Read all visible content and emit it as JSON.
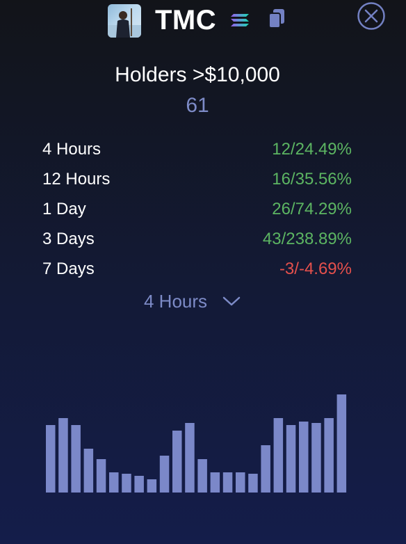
{
  "header": {
    "token_name": "TMC",
    "avatar_icon": "user-photo-avatar",
    "chain_icon": "solana-icon",
    "copy_icon": "copy-icon",
    "close_icon": "close-circle-icon"
  },
  "metric": {
    "title": "Holders >$10,000",
    "value": "61"
  },
  "stats": [
    {
      "label": "4 Hours",
      "value": "12/24.49%",
      "trend": "positive"
    },
    {
      "label": "12 Hours",
      "value": "16/35.56%",
      "trend": "positive"
    },
    {
      "label": "1 Day",
      "value": "26/74.29%",
      "trend": "positive"
    },
    {
      "label": "3 Days",
      "value": "43/238.89%",
      "trend": "positive"
    },
    {
      "label": "7 Days",
      "value": "-3/-4.69%",
      "trend": "negative"
    }
  ],
  "period_select": {
    "selected": "4 Hours"
  },
  "colors": {
    "positive": "#5cb562",
    "negative": "#e5504c",
    "bar": "#7b88c9",
    "accent": "#7d8bc7"
  },
  "chart_data": {
    "type": "bar",
    "values": [
      97,
      107,
      97,
      63,
      48,
      29,
      27,
      24,
      19,
      53,
      89,
      100,
      48,
      29,
      29,
      29,
      27,
      68,
      107,
      97,
      102,
      100,
      107,
      141
    ],
    "ylim": [
      0,
      141
    ]
  }
}
